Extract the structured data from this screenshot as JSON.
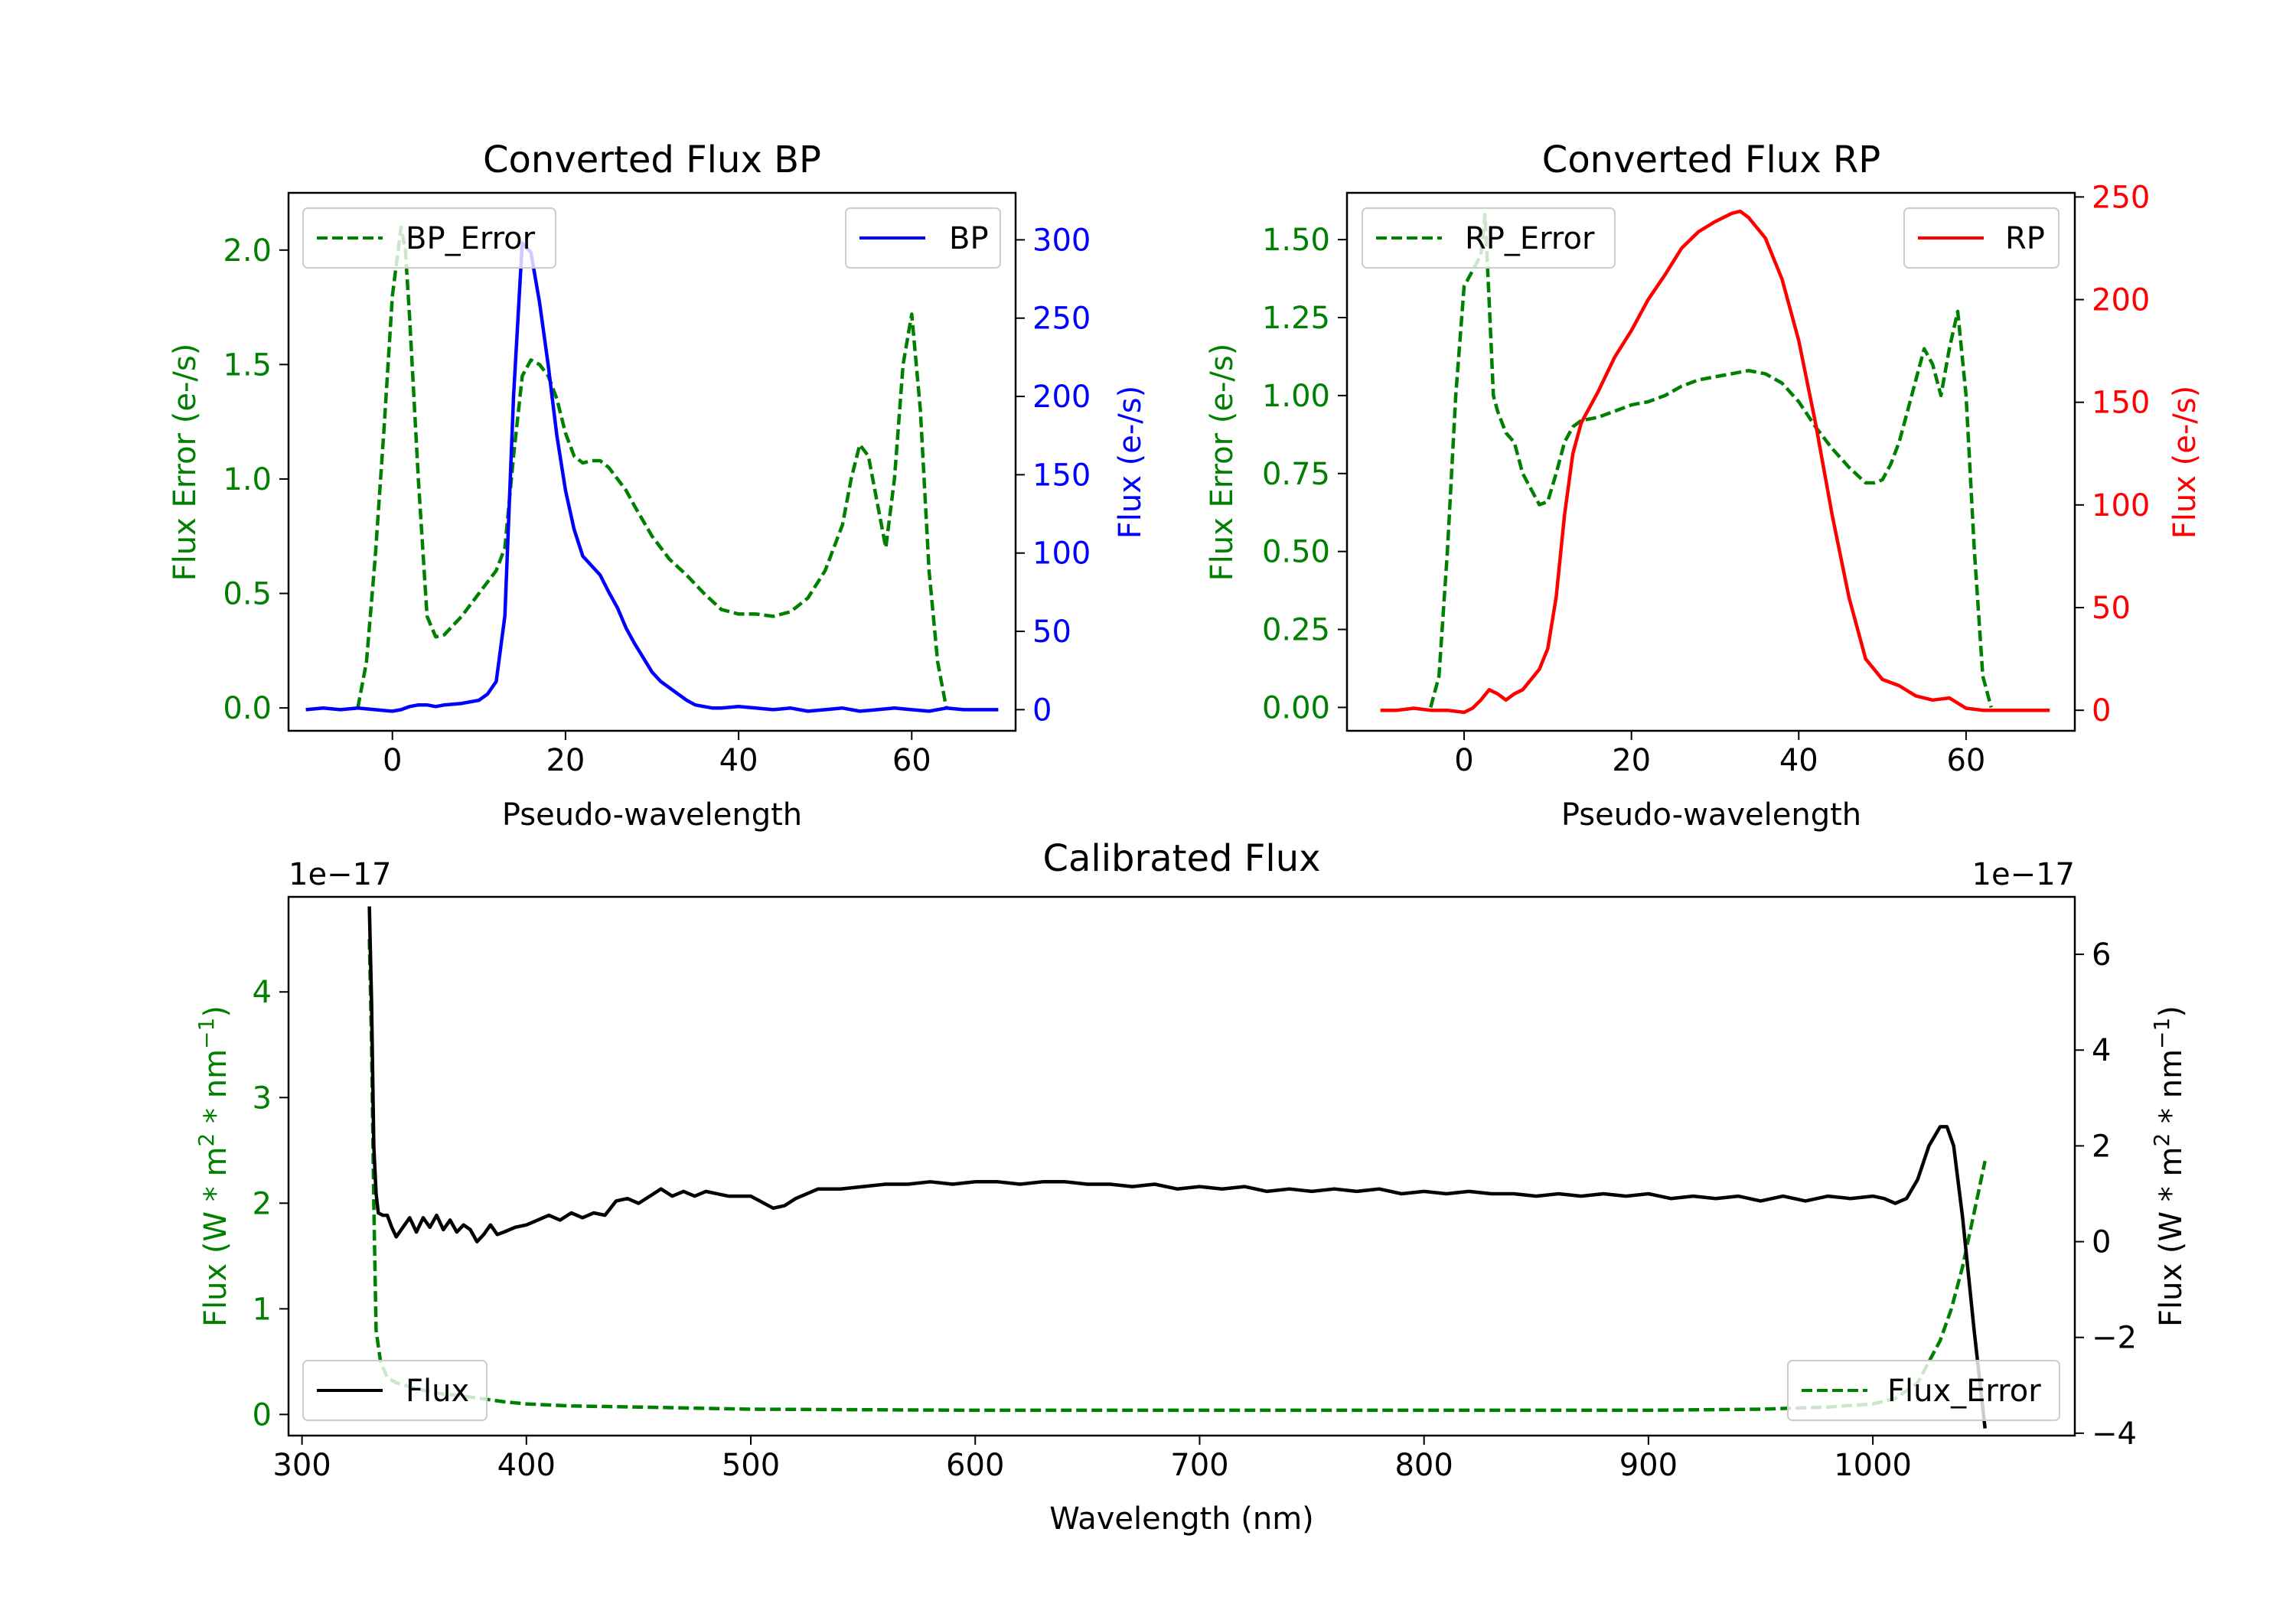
{
  "chart_data": [
    {
      "type": "line",
      "title": "Converted Flux BP",
      "xlabel": "Pseudo-wavelength",
      "ylabel_left": "Flux Error (e-/s)",
      "ylabel_right": "Flux (e-/s)",
      "xlim": [
        -12,
        72
      ],
      "ylim_left": [
        -0.1,
        2.25
      ],
      "ylim_right": [
        -13.5,
        330
      ],
      "xticks": [
        0,
        20,
        40,
        60
      ],
      "yticks_left": [
        0.0,
        0.5,
        1.0,
        1.5,
        2.0
      ],
      "yticks_right": [
        0,
        50,
        100,
        150,
        200,
        250,
        300
      ],
      "legend_left": {
        "label": "BP_Error",
        "placement": "upper left"
      },
      "legend_right": {
        "label": "BP",
        "placement": "upper right"
      },
      "series": [
        {
          "name": "BP_Error",
          "axis": "left",
          "style": "dashed",
          "color": "#008000",
          "x": [
            -4,
            -3,
            -2,
            -1,
            0,
            1,
            1.5,
            2,
            3,
            4,
            5,
            6,
            8,
            10,
            12,
            13,
            14,
            15,
            16,
            17,
            18,
            19,
            20,
            21,
            22,
            23,
            24,
            25,
            26,
            27,
            28,
            30,
            32,
            34,
            36,
            38,
            40,
            42,
            44,
            46,
            48,
            50,
            52,
            53,
            54,
            55,
            56,
            57,
            58,
            59,
            60,
            61,
            62,
            63,
            64
          ],
          "y": [
            0.0,
            0.2,
            0.65,
            1.2,
            1.8,
            2.1,
            2.0,
            1.7,
            1.0,
            0.4,
            0.31,
            0.32,
            0.4,
            0.5,
            0.6,
            0.7,
            1.1,
            1.45,
            1.52,
            1.5,
            1.45,
            1.35,
            1.2,
            1.1,
            1.07,
            1.08,
            1.08,
            1.05,
            1.0,
            0.95,
            0.88,
            0.75,
            0.65,
            0.58,
            0.5,
            0.43,
            0.41,
            0.41,
            0.4,
            0.42,
            0.48,
            0.6,
            0.8,
            1.0,
            1.15,
            1.1,
            0.9,
            0.7,
            1.0,
            1.5,
            1.72,
            1.3,
            0.6,
            0.2,
            0.0
          ]
        },
        {
          "name": "BP",
          "axis": "right",
          "style": "solid",
          "color": "#0000ff",
          "x": [
            -10,
            -8,
            -6,
            -4,
            -2,
            0,
            1,
            2,
            3,
            4,
            5,
            6,
            8,
            10,
            11,
            12,
            13,
            14,
            15,
            16,
            17,
            18,
            19,
            20,
            21,
            22,
            23,
            24,
            25,
            26,
            27,
            28,
            29,
            30,
            31,
            32,
            33,
            34,
            35,
            36,
            37,
            38,
            40,
            42,
            44,
            46,
            48,
            50,
            52,
            54,
            56,
            58,
            60,
            62,
            64,
            66,
            68,
            70
          ],
          "y": [
            0,
            1,
            0,
            1,
            0,
            -1,
            0,
            2,
            3,
            3,
            2,
            3,
            4,
            6,
            10,
            18,
            60,
            200,
            298,
            292,
            260,
            220,
            175,
            140,
            115,
            98,
            92,
            86,
            75,
            65,
            52,
            42,
            33,
            24,
            18,
            14,
            10,
            6,
            3,
            2,
            1,
            1,
            2,
            1,
            0,
            1,
            -1,
            0,
            1,
            -1,
            0,
            1,
            0,
            -1,
            1,
            0,
            0,
            0
          ]
        }
      ]
    },
    {
      "type": "line",
      "title": "Converted Flux RP",
      "xlabel": "Pseudo-wavelength",
      "ylabel_left": "Flux Error (e-/s)",
      "ylabel_right": "Flux (e-/s)",
      "xlim": [
        -14,
        73
      ],
      "ylim_left": [
        -0.075,
        1.65
      ],
      "ylim_right": [
        -10,
        252
      ],
      "xticks": [
        0,
        20,
        40,
        60
      ],
      "yticks_left": [
        0.0,
        0.25,
        0.5,
        0.75,
        1.0,
        1.25,
        1.5
      ],
      "yticks_right": [
        0,
        50,
        100,
        150,
        200,
        250
      ],
      "legend_left": {
        "label": "RP_Error",
        "placement": "upper left"
      },
      "legend_right": {
        "label": "RP",
        "placement": "upper right"
      },
      "series": [
        {
          "name": "RP_Error",
          "axis": "left",
          "style": "dashed",
          "color": "#008000",
          "x": [
            -4,
            -3,
            -2,
            -1,
            0,
            1,
            2,
            2.5,
            3,
            3.5,
            4,
            5,
            6,
            7,
            8,
            9,
            10,
            11,
            12,
            13,
            14,
            16,
            18,
            20,
            22,
            24,
            26,
            28,
            30,
            32,
            34,
            36,
            38,
            40,
            42,
            44,
            46,
            48,
            49,
            50,
            51,
            52,
            53,
            54,
            55,
            56,
            57,
            58,
            59,
            60,
            61,
            62,
            63
          ],
          "y": [
            0.0,
            0.1,
            0.5,
            1.0,
            1.35,
            1.4,
            1.45,
            1.58,
            1.3,
            1.0,
            0.95,
            0.88,
            0.85,
            0.75,
            0.7,
            0.65,
            0.66,
            0.75,
            0.85,
            0.9,
            0.92,
            0.93,
            0.95,
            0.97,
            0.98,
            1.0,
            1.03,
            1.05,
            1.06,
            1.07,
            1.08,
            1.07,
            1.04,
            0.98,
            0.9,
            0.83,
            0.77,
            0.72,
            0.72,
            0.73,
            0.78,
            0.85,
            0.95,
            1.05,
            1.15,
            1.1,
            1.0,
            1.15,
            1.27,
            1.0,
            0.5,
            0.1,
            0.0
          ]
        },
        {
          "name": "RP",
          "axis": "right",
          "style": "solid",
          "color": "#ff0000",
          "x": [
            -10,
            -8,
            -6,
            -4,
            -2,
            0,
            1,
            2,
            3,
            4,
            5,
            6,
            7,
            8,
            9,
            10,
            11,
            12,
            13,
            14,
            16,
            18,
            20,
            22,
            24,
            26,
            28,
            30,
            32,
            33,
            34,
            36,
            38,
            40,
            42,
            44,
            46,
            48,
            50,
            52,
            54,
            56,
            58,
            60,
            62,
            64,
            66,
            68,
            70
          ],
          "y": [
            0,
            0,
            1,
            0,
            0,
            -1,
            1,
            5,
            10,
            8,
            5,
            8,
            10,
            15,
            20,
            30,
            55,
            95,
            125,
            140,
            155,
            172,
            185,
            200,
            212,
            225,
            233,
            238,
            242,
            243,
            240,
            230,
            210,
            180,
            140,
            95,
            55,
            25,
            15,
            12,
            7,
            5,
            6,
            1,
            0,
            0,
            0,
            0,
            0
          ]
        }
      ]
    },
    {
      "type": "line",
      "title": "Calibrated Flux",
      "xlabel": "Wavelength (nm)",
      "ylabel_left": "Flux (W * m$^{2}$ * nm$^{-1}$)",
      "ylabel_left_parts": [
        "Flux (W * m",
        "2",
        " * nm",
        "−1",
        ")"
      ],
      "ylabel_right": "Flux (W * m$^{2}$ * nm$^{-1}$)",
      "ylabel_right_parts": [
        "Flux (W * m",
        "2",
        " * nm",
        "−1",
        ")"
      ],
      "offset_text_left": "1e−17",
      "offset_text_right": "1e−17",
      "xlim": [
        294,
        1090
      ],
      "ylim_left": [
        -0.2,
        4.9
      ],
      "ylim_right": [
        -4.05,
        7.2
      ],
      "xticks": [
        300,
        400,
        500,
        600,
        700,
        800,
        900,
        1000
      ],
      "yticks_left": [
        0,
        1,
        2,
        3,
        4
      ],
      "yticks_right": [
        -4,
        -2,
        0,
        2,
        4,
        6
      ],
      "legend_left": {
        "label": "Flux",
        "placement": "lower left"
      },
      "legend_right": {
        "label": "Flux_Error",
        "placement": "lower right"
      },
      "series": [
        {
          "name": "Flux_Error",
          "axis": "left",
          "style": "dashed",
          "color": "#008000",
          "x": [
            330,
            331,
            332,
            333,
            335,
            338,
            342,
            350,
            360,
            370,
            380,
            390,
            400,
            420,
            450,
            500,
            600,
            700,
            800,
            900,
            950,
            980,
            1000,
            1010,
            1020,
            1025,
            1030,
            1035,
            1040,
            1045,
            1050
          ],
          "y": [
            4.5,
            3.5,
            2.0,
            0.8,
            0.5,
            0.35,
            0.3,
            0.25,
            0.2,
            0.18,
            0.15,
            0.12,
            0.1,
            0.08,
            0.07,
            0.05,
            0.04,
            0.04,
            0.04,
            0.04,
            0.05,
            0.07,
            0.1,
            0.15,
            0.3,
            0.5,
            0.7,
            1.0,
            1.4,
            1.9,
            2.4
          ]
        },
        {
          "name": "Flux",
          "axis": "right",
          "style": "solid",
          "color": "#000000",
          "x": [
            330,
            331,
            332,
            333,
            334,
            336,
            338,
            340,
            342,
            345,
            348,
            351,
            354,
            357,
            360,
            363,
            366,
            369,
            372,
            375,
            378,
            381,
            384,
            387,
            390,
            395,
            400,
            405,
            410,
            415,
            420,
            425,
            430,
            435,
            440,
            445,
            450,
            455,
            460,
            465,
            470,
            475,
            480,
            490,
            500,
            510,
            515,
            520,
            530,
            540,
            550,
            560,
            570,
            580,
            590,
            600,
            610,
            620,
            630,
            640,
            650,
            660,
            670,
            680,
            690,
            700,
            710,
            720,
            730,
            740,
            750,
            760,
            770,
            780,
            790,
            800,
            810,
            820,
            830,
            840,
            850,
            860,
            870,
            880,
            890,
            900,
            910,
            920,
            930,
            940,
            950,
            960,
            970,
            980,
            990,
            1000,
            1005,
            1010,
            1015,
            1020,
            1025,
            1030,
            1033,
            1036,
            1040,
            1045,
            1050
          ],
          "y": [
            7.0,
            5.0,
            2.0,
            1.0,
            0.6,
            0.55,
            0.55,
            0.3,
            0.1,
            0.3,
            0.5,
            0.2,
            0.5,
            0.3,
            0.55,
            0.25,
            0.45,
            0.2,
            0.35,
            0.25,
            0.0,
            0.15,
            0.35,
            0.15,
            0.2,
            0.3,
            0.35,
            0.45,
            0.55,
            0.45,
            0.6,
            0.5,
            0.6,
            0.55,
            0.85,
            0.9,
            0.8,
            0.95,
            1.1,
            0.95,
            1.05,
            0.95,
            1.05,
            0.95,
            0.95,
            0.7,
            0.75,
            0.9,
            1.1,
            1.1,
            1.15,
            1.2,
            1.2,
            1.25,
            1.2,
            1.25,
            1.25,
            1.2,
            1.25,
            1.25,
            1.2,
            1.2,
            1.15,
            1.2,
            1.1,
            1.15,
            1.1,
            1.15,
            1.05,
            1.1,
            1.05,
            1.1,
            1.05,
            1.1,
            1.0,
            1.05,
            1.0,
            1.05,
            1.0,
            1.0,
            0.95,
            1.0,
            0.95,
            1.0,
            0.95,
            1.0,
            0.9,
            0.95,
            0.9,
            0.95,
            0.85,
            0.95,
            0.85,
            0.95,
            0.9,
            0.95,
            0.9,
            0.8,
            0.9,
            1.3,
            2.0,
            2.4,
            2.4,
            2.0,
            0.5,
            -1.8,
            -3.9
          ]
        }
      ]
    }
  ]
}
